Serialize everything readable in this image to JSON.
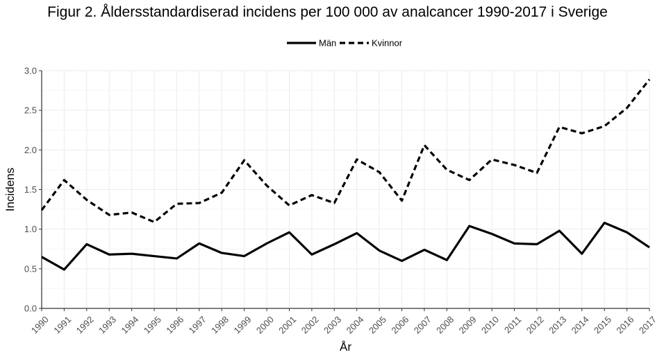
{
  "chart_data": {
    "type": "line",
    "title": "Figur 2. Åldersstandardiserad incidens per 100 000 av analcancer 1990-2017 i Sverige",
    "xlabel": "År",
    "ylabel": "Incidens",
    "x": [
      1990,
      1991,
      1992,
      1993,
      1994,
      1995,
      1996,
      1997,
      1998,
      1999,
      2000,
      2001,
      2002,
      2003,
      2004,
      2005,
      2006,
      2007,
      2008,
      2009,
      2010,
      2011,
      2012,
      2013,
      2014,
      2015,
      2016,
      2017
    ],
    "ylim": [
      0,
      3.0
    ],
    "yticks": [
      "0.0",
      "0.5",
      "1.0",
      "1.5",
      "2.0",
      "2.5",
      "3.0"
    ],
    "grid": true,
    "legend_position": "top-center",
    "series": [
      {
        "name": "Män",
        "style": "solid",
        "color": "#000000",
        "values": [
          0.65,
          0.49,
          0.81,
          0.68,
          0.69,
          0.66,
          0.63,
          0.82,
          0.7,
          0.66,
          0.82,
          0.96,
          0.68,
          0.81,
          0.95,
          0.73,
          0.6,
          0.74,
          0.61,
          1.04,
          0.94,
          0.82,
          0.81,
          0.98,
          0.69,
          1.08,
          0.96,
          0.77
        ]
      },
      {
        "name": "Kvinnor",
        "style": "dashed",
        "color": "#000000",
        "values": [
          1.24,
          1.62,
          1.37,
          1.18,
          1.21,
          1.09,
          1.32,
          1.33,
          1.46,
          1.87,
          1.55,
          1.3,
          1.43,
          1.33,
          1.88,
          1.72,
          1.36,
          2.06,
          1.75,
          1.62,
          1.88,
          1.81,
          1.71,
          2.29,
          2.21,
          2.3,
          2.53,
          2.89
        ]
      }
    ]
  }
}
